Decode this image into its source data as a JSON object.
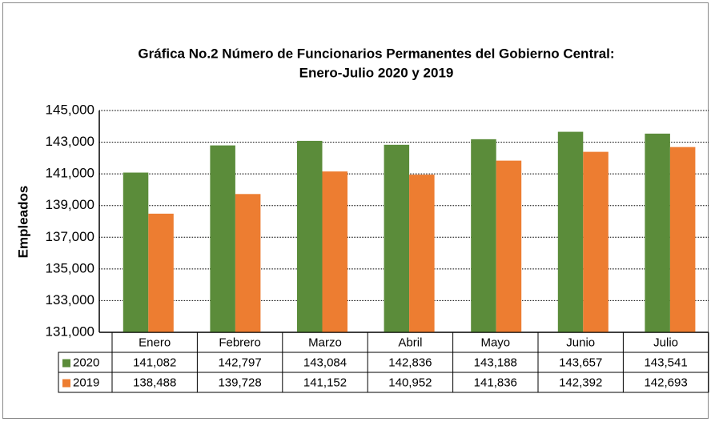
{
  "chart_data": {
    "type": "bar",
    "title": "Gráfica No.2 Número de Funcionarios Permanentes del Gobierno Central:",
    "subtitle": "Enero-Julio 2020 y 2019",
    "y_label": "Empleados",
    "categories": [
      "Enero",
      "Febrero",
      "Marzo",
      "Abril",
      "Mayo",
      "Junio",
      "Julio"
    ],
    "series": [
      {
        "name": "2020",
        "color": "#5b8c3a",
        "values": [
          141082,
          142797,
          143084,
          142836,
          143188,
          143657,
          143541
        ],
        "value_labels": [
          "141,082",
          "142,797",
          "143,084",
          "142,836",
          "143,188",
          "143,657",
          "143,541"
        ]
      },
      {
        "name": "2019",
        "color": "#ed7d31",
        "values": [
          138488,
          139728,
          141152,
          140952,
          141836,
          142392,
          142693
        ],
        "value_labels": [
          "138,488",
          "139,728",
          "141,152",
          "140,952",
          "141,836",
          "142,392",
          "142,693"
        ]
      }
    ],
    "ylim": [
      131000,
      145000
    ],
    "yticks": [
      {
        "value": 131000,
        "label": "131,000"
      },
      {
        "value": 133000,
        "label": "133,000"
      },
      {
        "value": 135000,
        "label": "135,000"
      },
      {
        "value": 137000,
        "label": "137,000"
      },
      {
        "value": 139000,
        "label": "139,000"
      },
      {
        "value": 141000,
        "label": "141,000"
      },
      {
        "value": 143000,
        "label": "143,000"
      },
      {
        "value": 145000,
        "label": "145,000"
      }
    ],
    "grid": true
  }
}
